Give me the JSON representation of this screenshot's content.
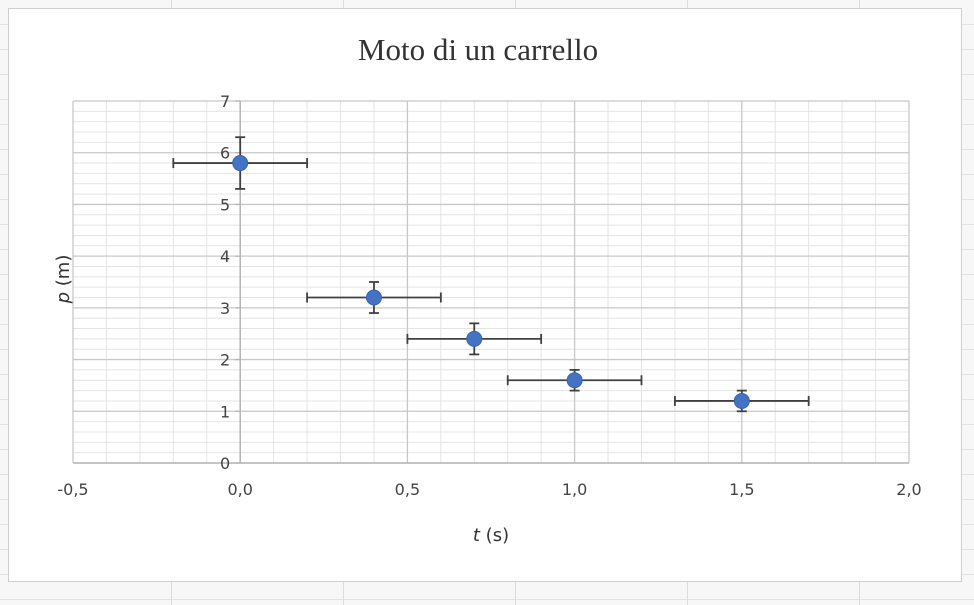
{
  "chart_data": {
    "type": "scatter",
    "title": "Moto di un carrello",
    "xlabel_var": "t",
    "xlabel_unit": " (s)",
    "ylabel_var": "p",
    "ylabel_unit": " (m)",
    "xlim": [
      -0.5,
      2.0
    ],
    "ylim": [
      0,
      7
    ],
    "x_ticks": [
      "-0,5",
      "0,0",
      "0,5",
      "1,0",
      "1,5",
      "2,0"
    ],
    "y_ticks": [
      "0",
      "1",
      "2",
      "3",
      "4",
      "5",
      "6",
      "7"
    ],
    "grid": true,
    "marker_color": "#4472c4",
    "errorbar_color": "#404040",
    "points": [
      {
        "x": 0.0,
        "y": 5.8,
        "x_err": 0.2,
        "y_err": 0.5
      },
      {
        "x": 0.4,
        "y": 3.2,
        "x_err": 0.2,
        "y_err": 0.3
      },
      {
        "x": 0.7,
        "y": 2.4,
        "x_err": 0.2,
        "y_err": 0.3
      },
      {
        "x": 1.0,
        "y": 1.6,
        "x_err": 0.2,
        "y_err": 0.2
      },
      {
        "x": 1.5,
        "y": 1.2,
        "x_err": 0.2,
        "y_err": 0.2
      }
    ]
  }
}
